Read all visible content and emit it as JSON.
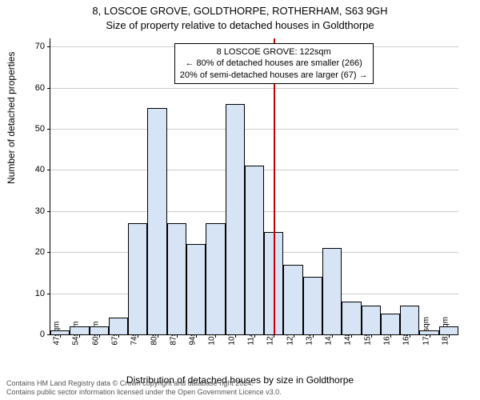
{
  "chart": {
    "type": "histogram",
    "title_line1": "8, LOSCOE GROVE, GOLDTHORPE, ROTHERHAM, S63 9GH",
    "title_line2": "Size of property relative to detached houses in Goldthorpe",
    "title_fontsize": 13,
    "ylabel": "Number of detached properties",
    "xlabel": "Distribution of detached houses by size in Goldthorpe",
    "label_fontsize": 12,
    "background_color": "#ffffff",
    "grid_color": "#cccccc",
    "bar_fill": "#d6e4f5",
    "bar_stroke": "#000000",
    "bar_width_ratio": 1.0,
    "ylim": [
      0,
      72
    ],
    "yticks": [
      0,
      10,
      20,
      30,
      40,
      50,
      60,
      70
    ],
    "xtick_labels": [
      "47sqm",
      "54sqm",
      "60sqm",
      "67sqm",
      "74sqm",
      "80sqm",
      "87sqm",
      "94sqm",
      "101sqm",
      "107sqm",
      "114sqm",
      "121sqm",
      "127sqm",
      "134sqm",
      "141sqm",
      "148sqm",
      "155sqm",
      "161sqm",
      "168sqm",
      "174sqm",
      "181sqm"
    ],
    "bin_values": [
      1,
      2,
      2,
      4,
      27,
      55,
      27,
      22,
      27,
      56,
      41,
      25,
      17,
      14,
      21,
      8,
      7,
      5,
      7,
      1,
      2
    ],
    "reference": {
      "color": "#cc0000",
      "bin_position": 11.5,
      "annotation_lines": [
        "8 LOSCOE GROVE: 122sqm",
        "← 80% of detached houses are smaller (266)",
        "20% of semi-detached houses are larger (67) →"
      ]
    },
    "footer_line1": "Contains HM Land Registry data © Crown copyright and database right 2024.",
    "footer_line2": "Contains public sector information licensed under the Open Government Licence v3.0."
  }
}
